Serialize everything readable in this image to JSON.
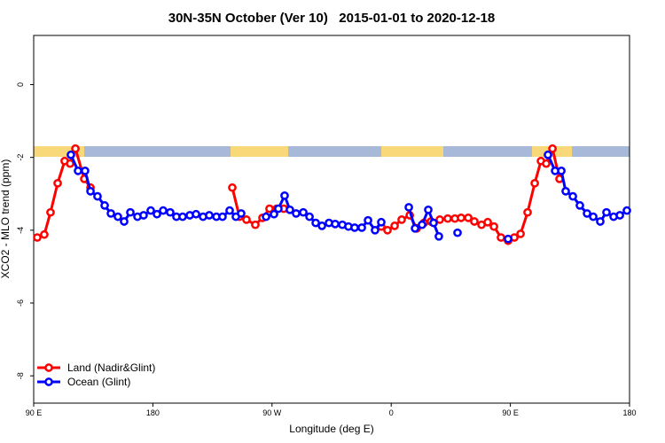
{
  "chart_data": {
    "type": "line",
    "title": "30N-35N October (Ver 10)   2015-01-01 to 2020-12-18",
    "x_label": "Longitude (deg E)",
    "y_label": "XCO2 - MLO trend (ppm)",
    "xlim": [
      90,
      540
    ],
    "xticks": [
      {
        "value": 90,
        "label": "90 E"
      },
      {
        "value": 180,
        "label": "180"
      },
      {
        "value": 270,
        "label": "90 W"
      },
      {
        "value": 360,
        "label": "0"
      },
      {
        "value": 450,
        "label": "90 E"
      },
      {
        "value": 540,
        "label": "180"
      }
    ],
    "ylim": [
      -8.75,
      1.35
    ],
    "yticks": [
      0,
      -2,
      -4,
      -6,
      -8
    ],
    "legend": "bottom-left",
    "series": [
      {
        "name": "Land (Nadir&Glint)",
        "color": "#ff0000",
        "x": [
          92.7,
          98.0,
          102.7,
          108.1,
          113.4,
          117.5,
          121.5,
          128.2,
          132.9,
          null,
          240.0,
          245.4,
          250.7,
          257.4,
          262.8,
          268.1,
          273.5,
          278.9,
          null,
          352.5,
          357.2,
          362.6,
          367.9,
          374.0,
          379.3,
          384.7,
          390.0,
          396.7,
          402.7,
          408.1,
          412.8,
          418.2,
          422.8,
          428.2,
          432.9,
          437.6,
          442.9,
          448.3,
          453.0,
          457.7,
          463.0,
          468.4,
          473.1,
          477.1,
          481.8,
          487.1
        ],
        "values": [
          -4.2,
          -4.12,
          -3.51,
          -2.71,
          -2.1,
          -2.17,
          -1.76,
          -2.59,
          -2.83,
          null,
          -2.83,
          -3.63,
          -3.71,
          -3.85,
          -3.66,
          -3.41,
          -3.41,
          -3.41,
          null,
          -3.9,
          -4.0,
          -3.88,
          -3.71,
          -3.59,
          -3.95,
          -3.8,
          -3.76,
          -3.71,
          -3.68,
          -3.68,
          -3.66,
          -3.66,
          -3.76,
          -3.85,
          -3.78,
          -3.9,
          -4.2,
          -4.29,
          -4.2,
          -4.1,
          -3.51,
          -2.71,
          -2.1,
          -2.17,
          -1.76,
          -2.59
        ]
      },
      {
        "name": "Ocean (Glint)",
        "color": "#0000ff",
        "x": [
          118.1,
          123.5,
          128.8,
          132.9,
          138.2,
          143.6,
          148.3,
          153.6,
          158.3,
          163.0,
          168.4,
          173.0,
          178.4,
          183.1,
          187.8,
          193.1,
          197.8,
          202.5,
          207.9,
          212.6,
          217.9,
          222.6,
          228.0,
          232.6,
          238.0,
          242.7,
          246.7,
          null,
          265.5,
          271.5,
          274.8,
          279.5,
          283.5,
          288.2,
          293.6,
          298.3,
          303.0,
          307.7,
          313.0,
          317.7,
          323.1,
          327.7,
          332.4,
          337.8,
          342.5,
          347.8,
          352.5,
          null,
          373.3,
          378.0,
          383.3,
          388.0,
          392.0,
          396.0,
          null,
          410.1,
          null,
          448.3,
          null,
          478.4,
          483.8,
          488.5,
          491.8,
          497.2,
          502.5,
          507.9,
          512.6,
          517.9,
          522.6,
          528.0,
          532.7,
          538.0
        ],
        "values": [
          -1.93,
          -2.37,
          -2.37,
          -2.93,
          -3.07,
          -3.32,
          -3.54,
          -3.63,
          -3.76,
          -3.51,
          -3.63,
          -3.59,
          -3.46,
          -3.56,
          -3.46,
          -3.51,
          -3.63,
          -3.63,
          -3.59,
          -3.56,
          -3.63,
          -3.59,
          -3.63,
          -3.63,
          -3.46,
          -3.63,
          -3.54,
          null,
          -3.63,
          -3.56,
          -3.41,
          -3.05,
          -3.44,
          -3.54,
          -3.51,
          -3.63,
          -3.8,
          -3.88,
          -3.8,
          -3.83,
          -3.85,
          -3.9,
          -3.93,
          -3.93,
          -3.73,
          -4.0,
          -3.78,
          null,
          -3.37,
          -3.95,
          -3.85,
          -3.44,
          -3.8,
          -4.17,
          null,
          -4.07,
          null,
          -4.24,
          null,
          -1.93,
          -2.37,
          -2.37,
          -2.93,
          -3.07,
          -3.32,
          -3.54,
          -3.63,
          -3.76,
          -3.51,
          -3.63,
          -3.59,
          -3.46
        ]
      }
    ]
  }
}
